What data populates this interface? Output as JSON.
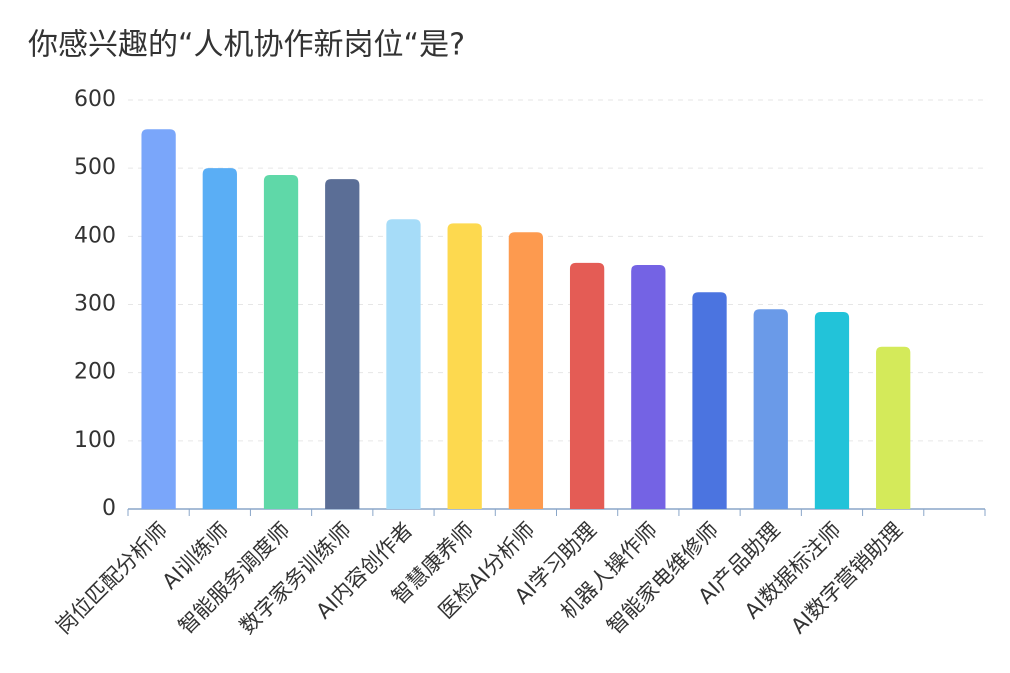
{
  "chart_data": {
    "type": "bar",
    "title": "你感兴趣的“人机协作新岗位“是?",
    "categories": [
      "岗位匹配分析师",
      "AI训练师",
      "智能服务调度师",
      "数字家务训练师",
      "AI内容创作者",
      "智慧康养师",
      "医检AI分析师",
      "AI学习助理",
      "机器人操作师",
      "智能家电维修师",
      "AI产品助理",
      "AI数据标注师",
      "AI数字营销助理",
      null
    ],
    "values": [
      557,
      500,
      490,
      484,
      425,
      419,
      406,
      361,
      358,
      318,
      293,
      289,
      238,
      null
    ],
    "colors": [
      "#7aa6fa",
      "#5aaef5",
      "#5fd8a8",
      "#5b6e96",
      "#a6dcf8",
      "#fdd94f",
      "#fd9a4f",
      "#e45c55",
      "#7463e4",
      "#4b74e0",
      "#6a9ae8",
      "#22c3d9",
      "#d4ea5a",
      null
    ],
    "ylim": [
      0,
      600
    ],
    "yticks": [
      0,
      100,
      200,
      300,
      400,
      500,
      600
    ],
    "grid": true
  }
}
